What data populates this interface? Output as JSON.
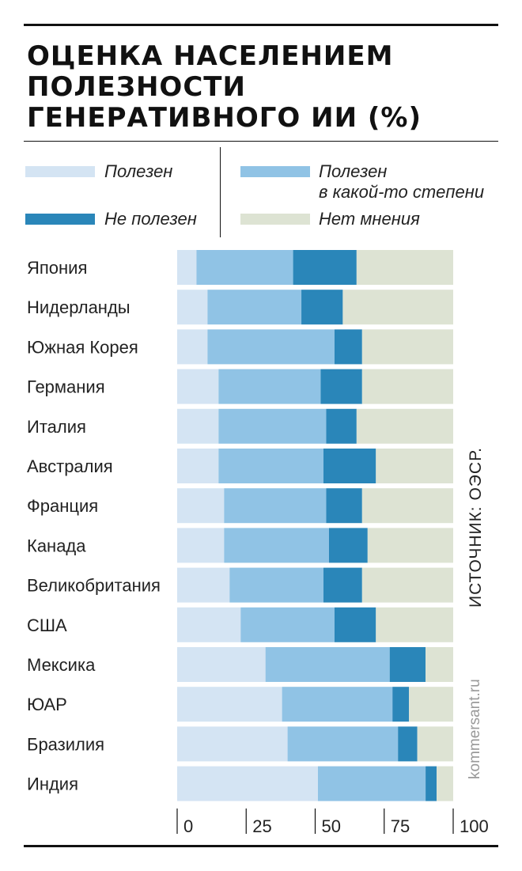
{
  "title_lines": [
    "ОЦЕНКА НАСЕЛЕНИЕМ",
    "ПОЛЕЗНОСТИ",
    "ГЕНЕРАТИВНОГО ИИ (%)"
  ],
  "legend": [
    {
      "key": "useful",
      "label_lines": [
        "Полезен"
      ],
      "color": "#d4e4f3"
    },
    {
      "key": "somewhat",
      "label_lines": [
        "Полезен",
        "в какой-то степени"
      ],
      "color": "#90c3e5"
    },
    {
      "key": "not_useful",
      "label_lines": [
        "Не полезен"
      ],
      "color": "#2a86b9"
    },
    {
      "key": "no_opinion",
      "label_lines": [
        "Нет мнения"
      ],
      "color": "#dde3d3"
    }
  ],
  "source": "ИСТОЧНИК: ОЭСР.",
  "site": "kommersant.ru",
  "chart_data": {
    "type": "bar",
    "orientation": "horizontal",
    "stacked": true,
    "title": "ОЦЕНКА НАСЕЛЕНИЕМ ПОЛЕЗНОСТИ ГЕНЕРАТИВНОГО ИИ (%)",
    "xlim": [
      0,
      100
    ],
    "xticks": [
      0,
      25,
      50,
      75,
      100
    ],
    "categories": [
      "Япония",
      "Нидерланды",
      "Южная Корея",
      "Германия",
      "Италия",
      "Австралия",
      "Франция",
      "Канада",
      "Великобритания",
      "США",
      "Мексика",
      "ЮАР",
      "Бразилия",
      "Индия"
    ],
    "series": [
      {
        "name": "Полезен",
        "color": "#d4e4f3",
        "values": [
          7,
          11,
          11,
          15,
          15,
          15,
          17,
          17,
          19,
          23,
          32,
          38,
          40,
          51
        ]
      },
      {
        "name": "Полезен в какой-то степени",
        "color": "#90c3e5",
        "values": [
          35,
          34,
          46,
          37,
          39,
          38,
          37,
          38,
          34,
          34,
          45,
          40,
          40,
          39
        ]
      },
      {
        "name": "Не полезен",
        "color": "#2a86b9",
        "values": [
          23,
          15,
          10,
          15,
          11,
          19,
          13,
          14,
          14,
          15,
          13,
          6,
          7,
          4
        ]
      },
      {
        "name": "Нет мнения",
        "color": "#dde3d3",
        "values": [
          35,
          40,
          33,
          33,
          35,
          28,
          33,
          31,
          33,
          28,
          10,
          16,
          13,
          6
        ]
      }
    ]
  }
}
